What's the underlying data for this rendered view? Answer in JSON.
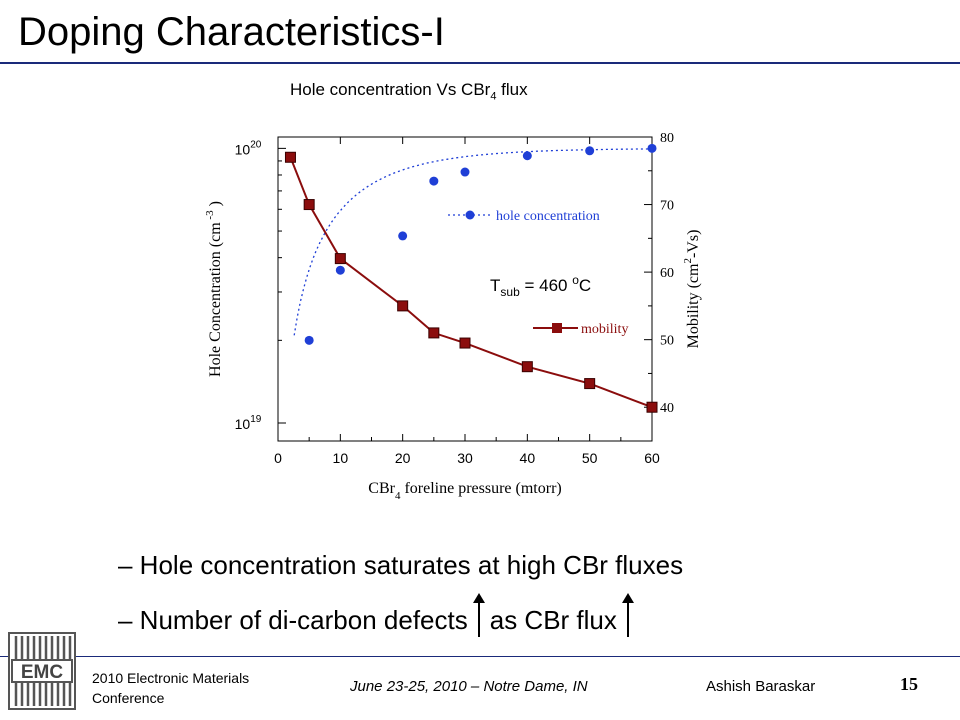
{
  "slide": {
    "title": "Doping Characteristics-I",
    "chart_caption_pre": "Hole concentration Vs CBr",
    "chart_caption_sub": "4",
    "chart_caption_post": " flux"
  },
  "bullets": {
    "line1": "– Hole concentration saturates at high CBr fluxes",
    "line2_a": "– Number of di-carbon defects",
    "line2_b": "as CBr flux"
  },
  "footer": {
    "conference": "2010 Electronic Materials Conference",
    "logo_text": "EMC",
    "date_place": "June 23-25, 2010 – Notre Dame, IN",
    "author": "Ashish Baraskar",
    "page_number": "15"
  },
  "chart_data": {
    "type": "scatter",
    "title": "Hole concentration Vs CBr4 flux",
    "xlabel": "CBr4 foreline pressure (mtorr)",
    "ylabel_left": "Hole Concentration (cm-3)",
    "ylabel_right": "Mobility (cm2/V-s)",
    "xlim": [
      0,
      60
    ],
    "x_ticks": [
      "0",
      "10",
      "20",
      "30",
      "40",
      "50",
      "60"
    ],
    "y_left_scale": "log",
    "y_left_lim": [
      8.6e+18,
      1.1e+20
    ],
    "y_left_ticks": [
      {
        "base": "10",
        "exp": "19"
      },
      {
        "base": "10",
        "exp": "20"
      }
    ],
    "y_right_lim": [
      35,
      80
    ],
    "y_right_ticks": [
      "40",
      "50",
      "60",
      "70",
      "80"
    ],
    "annotation": {
      "pre": "T",
      "sub": "sub",
      "mid": " = 460 ",
      "sup": "o",
      "post": "C"
    },
    "series": [
      {
        "name": "hole concentration",
        "axis": "left",
        "marker": "circle",
        "color": "#1f3fd6",
        "line": "dotted fit",
        "x": [
          5,
          10,
          20,
          25,
          30,
          40,
          50,
          60
        ],
        "y": [
          2e+19,
          3.6e+19,
          4.8e+19,
          7.6e+19,
          8.2e+19,
          9.4e+19,
          9.8e+19,
          1e+20
        ]
      },
      {
        "name": "mobility",
        "axis": "right",
        "marker": "square",
        "color": "#8b0d0d",
        "line": "solid fit",
        "x": [
          2,
          5,
          10,
          20,
          25,
          30,
          40,
          50,
          60
        ],
        "y": [
          77,
          70,
          62,
          55,
          51,
          49.5,
          46,
          43.5,
          40
        ]
      }
    ]
  }
}
